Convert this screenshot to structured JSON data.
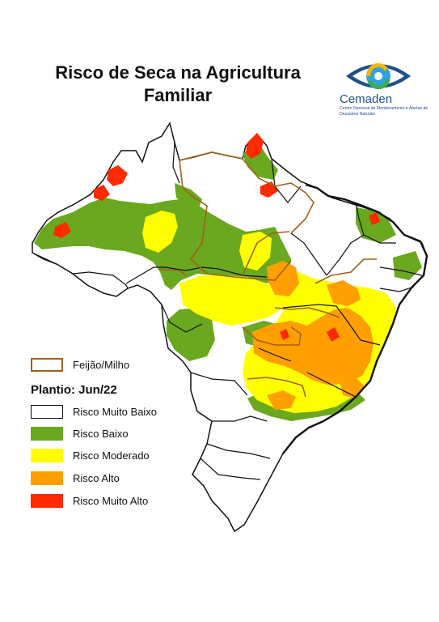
{
  "title": {
    "line1": "Risco de Seca na Agricultura",
    "line2": "Familiar"
  },
  "logo": {
    "name": "Cemaden",
    "subtitle": "Centro Nacional de Monitoramento e Alertas de Desastres Naturais",
    "icon": "eye-logo-icon"
  },
  "legend": {
    "crop_label": "Feijão/Milho",
    "plantio_label": "Plantio: Jun/22",
    "classes": [
      {
        "label": "Risco Muito Baixo",
        "color": "#ffffff"
      },
      {
        "label": "Risco Baixo",
        "color": "#6aa820"
      },
      {
        "label": "Risco Moderado",
        "color": "#ffff00"
      },
      {
        "label": "Risco Alto",
        "color": "#ff9f00"
      },
      {
        "label": "Risco Muito Alto",
        "color": "#ff2a00"
      }
    ],
    "crop_border_color": "#a0621a"
  },
  "colors": {
    "state_border": "#111111",
    "crop_border": "#a0621a",
    "low": "#6aa820",
    "moderate": "#ffff00",
    "high": "#ff9f00",
    "very_high": "#ff2a00"
  }
}
